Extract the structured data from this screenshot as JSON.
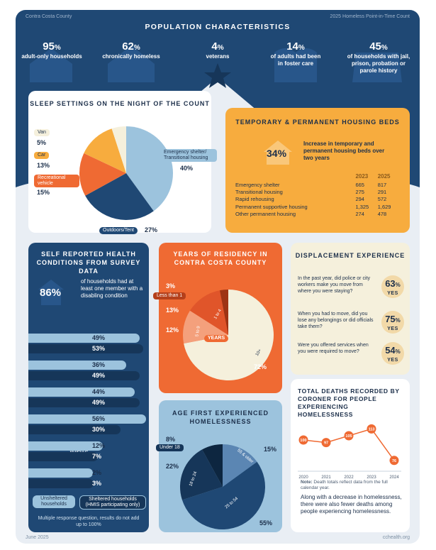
{
  "header": {
    "county": "Contra Costa County",
    "report": "2025 Homeless Point-in-Time Count"
  },
  "population": {
    "title": "POPULATION CHARACTERISTICS",
    "stats": [
      {
        "num": "95",
        "unit": "%",
        "label": "adult-only households",
        "icon": "house-icon"
      },
      {
        "num": "62",
        "unit": "%",
        "label": "chronically homeless",
        "icon": "house-icon"
      },
      {
        "num": "4",
        "unit": "%",
        "label": "veterans",
        "icon": "star-icon"
      },
      {
        "num": "14",
        "unit": "%",
        "label": "of adults had been in foster care",
        "icon": "heart-hands-icon"
      },
      {
        "num": "45",
        "unit": "%",
        "label": "of households with jail, prison, probation or parole history",
        "icon": "building-icon"
      }
    ]
  },
  "sleep": {
    "title": "SLEEP SETTINGS ON THE NIGHT OF THE COUNT",
    "labels": {
      "van": "Van",
      "van_pct": "5%",
      "car": "Car",
      "car_pct": "13%",
      "rv": "Recreational vehicle",
      "rv_pct": "15%",
      "shelter": "Emergency shelter/ Transitional housing",
      "shelter_pct": "40%",
      "outdoors": "Outdoors/Tent",
      "outdoors_pct": "27%"
    }
  },
  "beds": {
    "title": "TEMPORARY & PERMANENT HOUSING BEDS",
    "increase": "34%",
    "increase_text": "Increase in temporary and permanent housing beds over two years",
    "col_2023": "2023",
    "col_2025": "2025",
    "rows": [
      {
        "name": "Emergency shelter",
        "v2023": "665",
        "v2025": "817"
      },
      {
        "name": "Transitional housing",
        "v2023": "275",
        "v2025": "291"
      },
      {
        "name": "Rapid rehousing",
        "v2023": "294",
        "v2025": "572"
      },
      {
        "name": "Permanent supportive housing",
        "v2023": "1,325",
        "v2025": "1,629"
      },
      {
        "name": "Other permanent housing",
        "v2023": "274",
        "v2025": "478"
      }
    ]
  },
  "health": {
    "title": "SELF REPORTED HEALTH CONDITIONS FROM SURVEY DATA",
    "big": "86%",
    "big_text": "of households had at least one member with a disabling condition",
    "rows": [
      {
        "label": "Mental health condition",
        "unsheltered": "49%",
        "sheltered": "53%"
      },
      {
        "label": "Physical disability",
        "unsheltered": "36%",
        "sheltered": "49%"
      },
      {
        "label": "Chronic health condition",
        "unsheltered": "44%",
        "sheltered": "49%"
      },
      {
        "label": "Substance use disorder",
        "unsheltered": "56%",
        "sheltered": "30%"
      },
      {
        "label": "Fleeing domestic violence",
        "unsheltered": "12%",
        "sheltered": "7%"
      },
      {
        "label": "HIV/AIDS related illness",
        "unsheltered": "2%",
        "sheltered": "3%"
      }
    ],
    "legend_unsheltered": "Unsheltered households",
    "legend_sheltered": "Sheltered households (HMIS participating only)",
    "note": "Multiple response question, results do not add up to 100%"
  },
  "residency": {
    "title": "YEARS OF RESIDENCY IN CONTRA COSTA COUNTY",
    "less1": "Less than 1",
    "less1_pct": "3%",
    "s14": "1 to 4",
    "s14_pct": "13%",
    "s59": "5 to 9",
    "s59_pct": "12%",
    "s10": "10+",
    "s10_pct": "72%",
    "years": "YEARS"
  },
  "age": {
    "title": "AGE FIRST EXPERIENCED HOMELESSNESS",
    "u18": "Under 18",
    "u18_pct": "8%",
    "a1824": "18 to 24",
    "a1824_pct": "22%",
    "a2554": "25 to 54",
    "a2554_pct": "55%",
    "a55": "55 & older",
    "a55_pct": "15%"
  },
  "displacement": {
    "title": "DISPLACEMENT EXPERIENCE",
    "items": [
      {
        "q": "In the past year, did police or city workers make you move from where you were staying?",
        "pct": "63",
        "yes": "YES"
      },
      {
        "q": "When you had to move, did you lose any belongings or did officials take them?",
        "pct": "75",
        "yes": "YES"
      },
      {
        "q": "Were you offered services when you were required to move?",
        "pct": "54",
        "yes": "YES"
      }
    ]
  },
  "deaths": {
    "title": "TOTAL DEATHS RECORDED BY CORONER FOR PEOPLE EXPERIENCING HOMELESSNESS",
    "years": [
      "2020",
      "2021",
      "2022",
      "2023",
      "2024"
    ],
    "values": [
      "100",
      "97",
      "105",
      "113",
      "76"
    ],
    "note_label": "Note:",
    "note": "Death totals reflect data from the full calendar year.",
    "summary": "Along with a decrease in homelessness, there were also fewer deaths among people experiencing homelessness."
  },
  "chart_data": {
    "type": "line",
    "x": [
      2020,
      2021,
      2022,
      2023,
      2024
    ],
    "values": [
      100,
      97,
      105,
      113,
      76
    ],
    "title": "TOTAL DEATHS RECORDED BY CORONER FOR PEOPLE EXPERIENCING HOMELESSNESS"
  },
  "footer": {
    "date": "June 2025",
    "site": "cchealth.org"
  },
  "colors": {
    "navy": "#1f4874",
    "dark": "#163659",
    "orange": "#ef6a33",
    "gold": "#f7ac3e",
    "light_blue": "#9cc3dd",
    "cream": "#f5f0dc"
  }
}
